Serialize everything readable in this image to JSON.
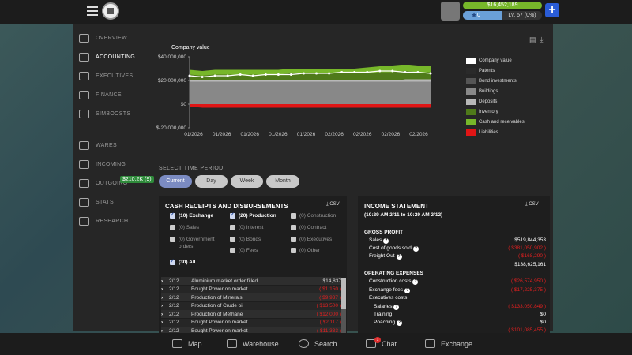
{
  "topbar": {
    "money": "$16,452,189",
    "xp": "0",
    "level": "Lv. 57 (0%)"
  },
  "sidebar": {
    "items": [
      {
        "label": "OVERVIEW",
        "icon": "chart-icon"
      },
      {
        "label": "ACCOUNTING",
        "icon": "dollar-doc-icon",
        "active": true
      },
      {
        "label": "EXECUTIVES",
        "icon": "people-icon"
      },
      {
        "label": "FINANCE",
        "icon": "stack-icon"
      },
      {
        "label": "SIMBOOSTS",
        "icon": "star-icon"
      },
      {
        "label": "WARES",
        "icon": "truck-icon"
      },
      {
        "label": "INCOMING",
        "icon": "incoming-icon"
      },
      {
        "label": "OUTGOING",
        "icon": "outgoing-icon"
      },
      {
        "label": "STATS",
        "icon": "clipboard-icon"
      },
      {
        "label": "RESEARCH",
        "icon": "flask-icon"
      }
    ],
    "outgoing_badge": "$210.2K (9)"
  },
  "chart_data": {
    "type": "area",
    "title": "Company value",
    "y_ticks": [
      "$40,000,000",
      "$20,000,000",
      "$0",
      "$-20,000,000"
    ],
    "ylim": [
      -20000000,
      40000000
    ],
    "x_ticks": [
      "01/2026",
      "01/2026",
      "01/2026",
      "01/2026",
      "01/2026",
      "02/2026",
      "02/2026",
      "02/2026",
      "02/2026"
    ],
    "series": [
      {
        "name": "Company value",
        "color": "#ffffff",
        "values": [
          24,
          23,
          24,
          24,
          25,
          24,
          25,
          25,
          25,
          26,
          26,
          26,
          27,
          27,
          27,
          28,
          28,
          27,
          27,
          26
        ]
      },
      {
        "name": "Patents",
        "color": "#2a2a2a",
        "values": [
          0,
          0,
          0,
          0,
          0,
          0,
          0,
          0,
          0,
          0,
          0,
          0,
          0,
          0,
          0,
          0,
          0,
          0,
          0,
          0
        ]
      },
      {
        "name": "Bond investments",
        "color": "#555555",
        "values": [
          0,
          0,
          0,
          0,
          0,
          0,
          0,
          0,
          0,
          0,
          0,
          0,
          0,
          0,
          0,
          0,
          0,
          0,
          0,
          0
        ]
      },
      {
        "name": "Buildings",
        "color": "#888888",
        "values": [
          19,
          19,
          19,
          19,
          19,
          19,
          19,
          19,
          19,
          19,
          19,
          19,
          19,
          19,
          19,
          19,
          19,
          19,
          19,
          19
        ]
      },
      {
        "name": "Deposits",
        "color": "#b8b8b8",
        "values": [
          1,
          1,
          1,
          1,
          1,
          1,
          1,
          1,
          1,
          1,
          1,
          1,
          1,
          1,
          1,
          1,
          1,
          2,
          2,
          2
        ]
      },
      {
        "name": "Inventory",
        "color": "#4f7a1a",
        "values": [
          5,
          4,
          5,
          5,
          5,
          5,
          5,
          5,
          6,
          6,
          6,
          6,
          6,
          6,
          6,
          7,
          7,
          7,
          6,
          6
        ]
      },
      {
        "name": "Cash and receivables",
        "color": "#77b72a",
        "values": [
          4,
          4,
          4,
          4,
          4,
          4,
          4,
          4,
          4,
          4,
          4,
          4,
          4,
          4,
          5,
          5,
          5,
          5,
          5,
          5
        ]
      },
      {
        "name": "Liabilities",
        "color": "#e01515",
        "values": [
          -2,
          -3,
          -3,
          -3,
          -3,
          -3,
          -3,
          -3,
          -3,
          -3,
          -3,
          -3,
          -3,
          -3,
          -3,
          -3,
          -3,
          -3,
          -3,
          -3
        ]
      }
    ]
  },
  "period": {
    "label": "SELECT TIME PERIOD",
    "options": [
      "Current",
      "Day",
      "Week",
      "Month"
    ]
  },
  "cash": {
    "title": "CASH RECEIPTS AND DISBURSEMENTS",
    "csv": "CSV",
    "filters": [
      {
        "label": "(10) Exchange",
        "on": true
      },
      {
        "label": "(20) Production",
        "on": true
      },
      {
        "label": "(0) Construction",
        "on": false
      },
      {
        "label": "(0) Sales",
        "on": false
      },
      {
        "label": "(0) Interest",
        "on": false
      },
      {
        "label": "(0) Contract",
        "on": false
      },
      {
        "label": "(0) Government orders",
        "on": false
      },
      {
        "label": "(0) Bonds",
        "on": false
      },
      {
        "label": "(0) Executives",
        "on": false
      },
      {
        "label": "(0) Fees",
        "on": false
      },
      {
        "label": "(0) Other",
        "on": false
      },
      {
        "label": "(30) All",
        "on": true
      }
    ],
    "rows": [
      {
        "date": "2/12",
        "desc": "Aluminium market order filled",
        "amount": "$14,837",
        "neg": false
      },
      {
        "date": "2/12",
        "desc": "Bought Power on market",
        "amount": "( $1,150 )",
        "neg": true
      },
      {
        "date": "2/12",
        "desc": "Production of Minerals",
        "amount": "( $9,937 )",
        "neg": true
      },
      {
        "date": "2/12",
        "desc": "Production of Crude oil",
        "amount": "( $13,500 )",
        "neg": true
      },
      {
        "date": "2/12",
        "desc": "Production of Methane",
        "amount": "( $12,000 )",
        "neg": true
      },
      {
        "date": "2/12",
        "desc": "Bought Power on market",
        "amount": "( $2,117 )",
        "neg": true
      },
      {
        "date": "2/12",
        "desc": "Bought Power on market",
        "amount": "( $11,333 )",
        "neg": true
      }
    ]
  },
  "income": {
    "title": "INCOME STATEMENT",
    "csv": "CSV",
    "range": "(10:29 AM 2/11 to 10:29 AM 2/12)",
    "gross_profit": "GROSS PROFIT",
    "sales_label": "Sales",
    "sales": "$519,844,353",
    "cogs_label": "Cost of goods sold",
    "cogs": "( $381,050,902 )",
    "freight_label": "Freight Out",
    "freight": "( $168,290 )",
    "gross_total": "$138,625,161",
    "opex": "OPERATING EXPENSES",
    "construction_label": "Construction costs",
    "construction": "( $26,574,950 )",
    "exchange_label": "Exchange fees",
    "exchange": "( $17,225,375 )",
    "exec_label": "Executives costs",
    "salaries_label": "Salaries",
    "salaries": "( $133,050,849 )",
    "training_label": "Training",
    "training": "$0",
    "poaching_label": "Poaching",
    "poaching": "$0",
    "last": "( $101,085,455 )"
  },
  "bottom": {
    "map": "Map",
    "warehouse": "Warehouse",
    "search": "Search",
    "chat": "Chat",
    "chat_count": "1",
    "exchange": "Exchange"
  }
}
